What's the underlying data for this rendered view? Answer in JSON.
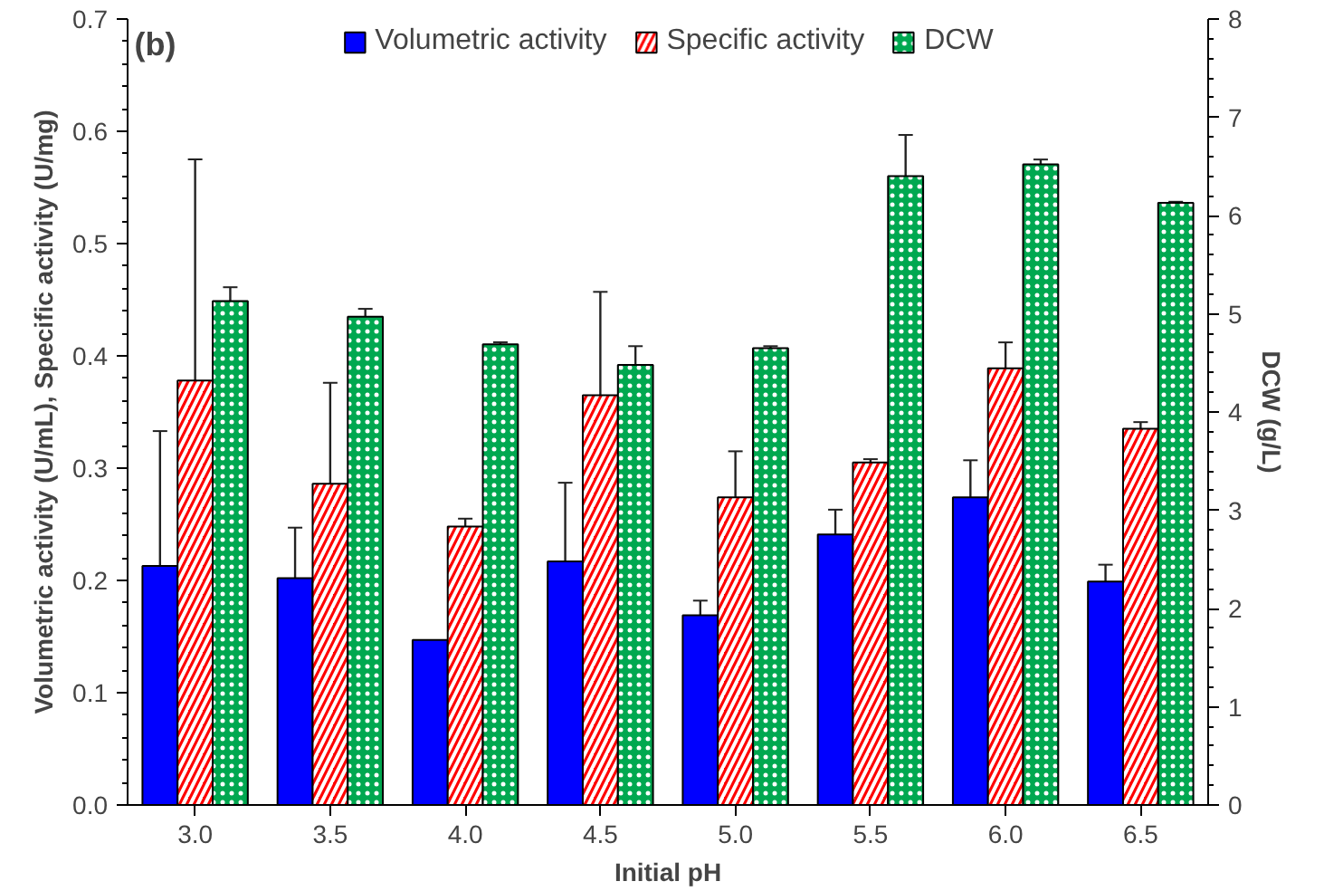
{
  "chart_data": {
    "type": "bar",
    "categories": [
      "3.0",
      "3.5",
      "4.0",
      "4.5",
      "5.0",
      "5.5",
      "6.0",
      "6.5"
    ],
    "xlabel": "Initial pH",
    "ylabel": "Volumetric activity (U/mL), Specific activity (U/mg)",
    "y2label": "DCW (g/L)",
    "series": [
      {
        "name": "Volumetric activity",
        "color": "#0000ff",
        "values": [
          0.213,
          0.202,
          0.147,
          0.217,
          0.169,
          0.241,
          0.274,
          0.199
        ],
        "errors": [
          0.12,
          0.045,
          null,
          0.07,
          0.013,
          0.022,
          0.033,
          0.015
        ]
      },
      {
        "name": "Specific activity",
        "color": "#ff0000",
        "values": [
          0.378,
          0.286,
          0.248,
          0.365,
          0.274,
          0.305,
          0.389,
          0.335
        ],
        "errors": [
          0.197,
          0.09,
          0.007,
          0.092,
          0.041,
          0.003,
          0.023,
          0.006
        ]
      },
      {
        "name": "DCW",
        "color": "#00a850",
        "axis": "y2",
        "values": [
          5.13,
          4.97,
          4.69,
          4.48,
          4.65,
          6.4,
          6.52,
          6.13
        ],
        "errors": [
          0.14,
          0.08,
          0.02,
          0.19,
          0.02,
          0.42,
          0.05,
          0.01
        ]
      }
    ],
    "ylim": [
      0,
      0.7
    ],
    "yticks": [
      {
        "value": 0,
        "label": "0.0"
      },
      0.1,
      0.2,
      0.3,
      0.4,
      0.5,
      0.6,
      0.7
    ],
    "y2lim": [
      0,
      8
    ],
    "y2ticks": [
      0,
      1,
      2,
      3,
      4,
      5,
      6,
      7,
      8
    ],
    "annotations": [
      "(b)"
    ],
    "legend": "top",
    "grid": false
  }
}
